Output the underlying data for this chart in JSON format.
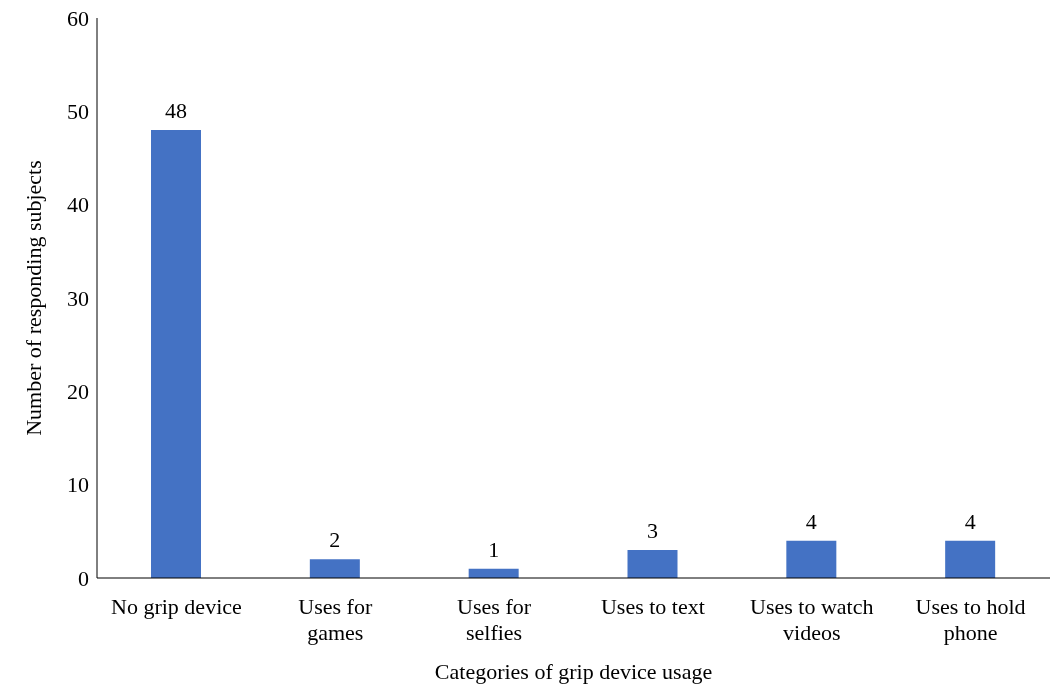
{
  "chart_data": {
    "type": "bar",
    "xlabel": "Categories of grip device usage",
    "ylabel": "Number of responding subjects",
    "categories": [
      "No grip device",
      "Uses for games",
      "Uses for selfies",
      "Uses to text",
      "Uses to watch videos",
      "Uses to hold phone"
    ],
    "values": [
      48,
      2,
      1,
      3,
      4,
      4
    ],
    "color": "#4472c4",
    "data_labels": true,
    "ylim": [
      0,
      60
    ],
    "yticks": [
      0,
      10,
      20,
      30,
      40,
      50,
      60
    ],
    "grid": false,
    "legend": false
  }
}
